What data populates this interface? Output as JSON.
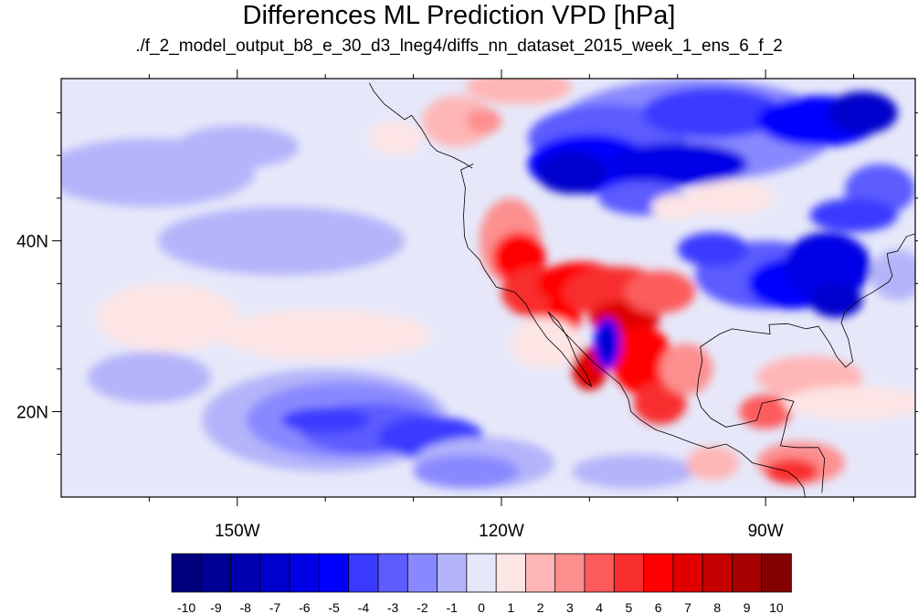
{
  "title": "Differences ML Prediction VPD [hPa]",
  "subtitle": "./f_2_model_output_b8_e_30_d3_lneg4/diffs_nn_dataset_2015_week_1_ens_6_f_2",
  "map": {
    "lon_range": [
      -170,
      -73
    ],
    "lat_range": [
      10,
      59
    ],
    "x_ticks": [
      {
        "lon": -150,
        "label": "150W"
      },
      {
        "lon": -120,
        "label": "120W"
      },
      {
        "lon": -90,
        "label": "90W"
      }
    ],
    "y_ticks": [
      {
        "lat": 20,
        "label": "20N"
      },
      {
        "lat": 40,
        "label": "40N"
      }
    ],
    "minor_x_lons": [
      -160,
      -140,
      -130,
      -110,
      -100,
      -80
    ],
    "minor_y_lats": [
      15,
      25,
      30,
      35,
      45,
      50,
      55
    ],
    "background_color": "#e6e8fa"
  },
  "colorbar": {
    "labels": [
      "-10",
      "-9",
      "-8",
      "-7",
      "-6",
      "-5",
      "-4",
      "-3",
      "-2",
      "-1",
      "0",
      "1",
      "2",
      "3",
      "4",
      "5",
      "6",
      "7",
      "8",
      "9",
      "10"
    ],
    "colors": [
      "#00007f",
      "#000094",
      "#0000b0",
      "#0000cc",
      "#0000e6",
      "#0000ff",
      "#3a3aff",
      "#5c5cff",
      "#8989ff",
      "#b4b4fa",
      "#e6e8fa",
      "#fde5e5",
      "#ffb6b6",
      "#fd8f8f",
      "#fd5b5b",
      "#f82e2e",
      "#ff0000",
      "#e00000",
      "#c40000",
      "#a60000",
      "#850000"
    ]
  },
  "field_blobs": [
    {
      "lon": -160,
      "lat": 48,
      "r_lon": 12,
      "r_lat": 4,
      "color": "#b4b4fa"
    },
    {
      "lon": -145,
      "lat": 40,
      "r_lon": 14,
      "r_lat": 4,
      "color": "#b4b4fa"
    },
    {
      "lon": -150,
      "lat": 51,
      "r_lon": 7,
      "r_lat": 2.5,
      "color": "#b4b4fa"
    },
    {
      "lon": -158,
      "lat": 31,
      "r_lon": 8,
      "r_lat": 4,
      "color": "#fde5e5"
    },
    {
      "lon": -140,
      "lat": 29,
      "r_lon": 12,
      "r_lat": 3,
      "color": "#fde5e5"
    },
    {
      "lon": -160,
      "lat": 24,
      "r_lon": 7,
      "r_lat": 3,
      "color": "#b4b4fa"
    },
    {
      "lon": -140,
      "lat": 19,
      "r_lon": 14,
      "r_lat": 6,
      "color": "#b4b4fa"
    },
    {
      "lon": -138,
      "lat": 19,
      "r_lon": 11,
      "r_lat": 4.5,
      "color": "#8989ff"
    },
    {
      "lon": -135,
      "lat": 18,
      "r_lon": 8,
      "r_lat": 3,
      "color": "#5c5cff"
    },
    {
      "lon": -140,
      "lat": 19,
      "r_lon": 5,
      "r_lat": 1.5,
      "color": "#3a3aff"
    },
    {
      "lon": -128,
      "lat": 17,
      "r_lon": 6,
      "r_lat": 2.5,
      "color": "#3a3aff"
    },
    {
      "lon": -122,
      "lat": 14,
      "r_lon": 8,
      "r_lat": 3,
      "color": "#b4b4fa"
    },
    {
      "lon": -124,
      "lat": 13,
      "r_lon": 6,
      "r_lat": 2,
      "color": "#8989ff"
    },
    {
      "lon": -105,
      "lat": 13,
      "r_lon": 7,
      "r_lat": 2,
      "color": "#b4b4fa"
    },
    {
      "lon": -125,
      "lat": 54,
      "r_lon": 4,
      "r_lat": 3,
      "color": "#ffb6b6"
    },
    {
      "lon": -122,
      "lat": 54,
      "r_lon": 2,
      "r_lat": 1.5,
      "color": "#fd8f8f"
    },
    {
      "lon": -132,
      "lat": 52,
      "r_lon": 3,
      "r_lat": 2,
      "color": "#fde5e5"
    },
    {
      "lon": -118,
      "lat": 58,
      "r_lon": 6,
      "r_lat": 2,
      "color": "#ffb6b6"
    },
    {
      "lon": -98,
      "lat": 53,
      "r_lon": 16,
      "r_lat": 6,
      "color": "#8989ff"
    },
    {
      "lon": -108,
      "lat": 52,
      "r_lon": 9,
      "r_lat": 4,
      "color": "#5c5cff"
    },
    {
      "lon": -96,
      "lat": 55,
      "r_lon": 8,
      "r_lat": 3,
      "color": "#3a3aff"
    },
    {
      "lon": -110,
      "lat": 49,
      "r_lon": 7,
      "r_lat": 3.5,
      "color": "#0000ff"
    },
    {
      "lon": -112,
      "lat": 48,
      "r_lon": 4,
      "r_lat": 2.5,
      "color": "#0000cc"
    },
    {
      "lon": -100,
      "lat": 49,
      "r_lon": 8,
      "r_lat": 2.5,
      "color": "#0000e6"
    },
    {
      "lon": -84,
      "lat": 54,
      "r_lon": 7,
      "r_lat": 3,
      "color": "#0000ff"
    },
    {
      "lon": -79,
      "lat": 55,
      "r_lon": 4,
      "r_lat": 2.5,
      "color": "#0000cc"
    },
    {
      "lon": -77,
      "lat": 46,
      "r_lon": 4,
      "r_lat": 3,
      "color": "#5c5cff"
    },
    {
      "lon": -80,
      "lat": 43,
      "r_lon": 5,
      "r_lat": 2,
      "color": "#3a3aff"
    },
    {
      "lon": -90,
      "lat": 36,
      "r_lon": 8,
      "r_lat": 4,
      "color": "#5c5cff"
    },
    {
      "lon": -87,
      "lat": 35,
      "r_lon": 5,
      "r_lat": 3,
      "color": "#0000ff"
    },
    {
      "lon": -83,
      "lat": 37,
      "r_lon": 5,
      "r_lat": 4,
      "color": "#0000e6"
    },
    {
      "lon": -82,
      "lat": 33,
      "r_lon": 3,
      "r_lat": 2,
      "color": "#0000cc"
    },
    {
      "lon": -96,
      "lat": 39,
      "r_lon": 4,
      "r_lat": 2,
      "color": "#3a3aff"
    },
    {
      "lon": -104,
      "lat": 45,
      "r_lon": 5,
      "r_lat": 2,
      "color": "#5c5cff"
    },
    {
      "lon": -100,
      "lat": 44,
      "r_lon": 3,
      "r_lat": 1.5,
      "color": "#fde5e5"
    },
    {
      "lon": -94,
      "lat": 45,
      "r_lon": 5,
      "r_lat": 2,
      "color": "#fde5e5"
    },
    {
      "lon": -75,
      "lat": 36,
      "r_lon": 3,
      "r_lat": 3,
      "color": "#b4b4fa"
    },
    {
      "lon": -119,
      "lat": 40,
      "r_lon": 3.5,
      "r_lat": 5,
      "color": "#fd8f8f"
    },
    {
      "lon": -118,
      "lat": 38,
      "r_lon": 3,
      "r_lat": 3,
      "color": "#ff0000"
    },
    {
      "lon": -116,
      "lat": 34,
      "r_lon": 4,
      "r_lat": 3,
      "color": "#f82e2e"
    },
    {
      "lon": -113,
      "lat": 31,
      "r_lon": 2,
      "r_lat": 3,
      "color": "#ff0000"
    },
    {
      "lon": -111,
      "lat": 35,
      "r_lon": 5,
      "r_lat": 2.5,
      "color": "#ff0000"
    },
    {
      "lon": -107,
      "lat": 34,
      "r_lon": 6,
      "r_lat": 3,
      "color": "#f82e2e"
    },
    {
      "lon": -106,
      "lat": 31,
      "r_lon": 4,
      "r_lat": 2,
      "color": "#e00000"
    },
    {
      "lon": -102,
      "lat": 34,
      "r_lon": 4,
      "r_lat": 2.5,
      "color": "#fd5b5b"
    },
    {
      "lon": -104,
      "lat": 26,
      "r_lon": 3.5,
      "r_lat": 4,
      "color": "#ff0000"
    },
    {
      "lon": -102,
      "lat": 21,
      "r_lon": 3,
      "r_lat": 2.5,
      "color": "#f82e2e"
    },
    {
      "lon": -99,
      "lat": 25,
      "r_lon": 3,
      "r_lat": 3,
      "color": "#fd8f8f"
    },
    {
      "lon": -110,
      "lat": 25,
      "r_lon": 2,
      "r_lat": 2.5,
      "color": "#e00000"
    },
    {
      "lon": -90,
      "lat": 20,
      "r_lon": 3,
      "r_lat": 2,
      "color": "#fd5b5b"
    },
    {
      "lon": -86,
      "lat": 14,
      "r_lon": 5,
      "r_lat": 2.5,
      "color": "#fd8f8f"
    },
    {
      "lon": -87,
      "lat": 13,
      "r_lon": 3,
      "r_lat": 1.5,
      "color": "#f82e2e"
    },
    {
      "lon": -96,
      "lat": 14,
      "r_lon": 3,
      "r_lat": 2,
      "color": "#ffb6b6"
    },
    {
      "lon": -85,
      "lat": 24,
      "r_lon": 6,
      "r_lat": 2.5,
      "color": "#ffb6b6"
    },
    {
      "lon": -80,
      "lat": 21,
      "r_lon": 8,
      "r_lat": 2,
      "color": "#fde5e5"
    },
    {
      "lon": -115,
      "lat": 28,
      "r_lon": 4,
      "r_lat": 3,
      "color": "#fde5e5"
    },
    {
      "lon": -108,
      "lat": 28,
      "r_lon": 1.5,
      "r_lat": 3,
      "color": "#0000ff"
    },
    {
      "lon": -108,
      "lat": 28,
      "r_lon": 0.8,
      "r_lat": 2,
      "color": "#0000cc"
    }
  ]
}
